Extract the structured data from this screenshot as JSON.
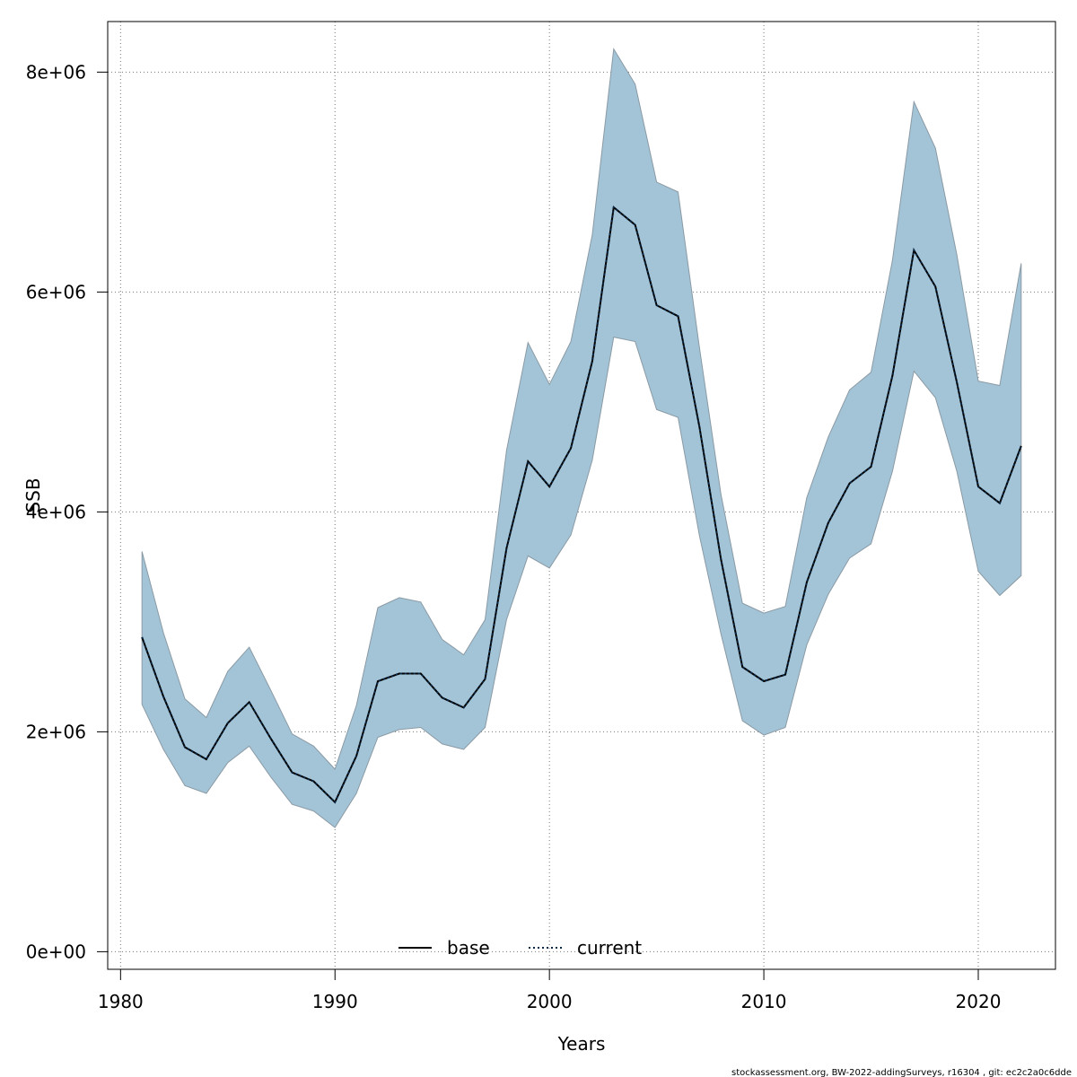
{
  "chart_data": {
    "type": "area",
    "xlabel": "Years",
    "ylabel": "SSB",
    "xlim": [
      1979.4,
      2023.6
    ],
    "ylim": [
      -160000,
      8460000
    ],
    "x_ticks": [
      1980,
      1990,
      2000,
      2010,
      2020
    ],
    "x_tick_labels": [
      "1980",
      "1990",
      "2000",
      "2010",
      "2020"
    ],
    "y_ticks": [
      0,
      2000000,
      4000000,
      6000000,
      8000000
    ],
    "y_tick_labels": [
      "0e+00",
      "2e+06",
      "4e+06",
      "6e+06",
      "8e+06"
    ],
    "grid": true,
    "legend_position": "bottom-center",
    "x": [
      1981,
      1982,
      1983,
      1984,
      1985,
      1986,
      1987,
      1988,
      1989,
      1990,
      1991,
      1992,
      1993,
      1994,
      1995,
      1996,
      1997,
      1998,
      1999,
      2000,
      2001,
      2002,
      2003,
      2004,
      2005,
      2006,
      2007,
      2008,
      2009,
      2010,
      2011,
      2012,
      2013,
      2014,
      2015,
      2016,
      2017,
      2018,
      2019,
      2020,
      2021,
      2022
    ],
    "series": [
      {
        "name": "base",
        "style": "solid",
        "color": "#000000",
        "values": [
          2860000,
          2320000,
          1860000,
          1750000,
          2080000,
          2270000,
          1940000,
          1630000,
          1550000,
          1360000,
          1780000,
          2460000,
          2530000,
          2530000,
          2310000,
          2220000,
          2480000,
          3670000,
          4460000,
          4230000,
          4580000,
          5370000,
          6770000,
          6610000,
          5880000,
          5780000,
          4770000,
          3570000,
          2590000,
          2460000,
          2520000,
          3360000,
          3900000,
          4260000,
          4410000,
          5240000,
          6380000,
          6050000,
          5180000,
          4230000,
          4080000,
          4600000
        ]
      },
      {
        "name": "current",
        "style": "dotted",
        "color": "#0a2a4a",
        "values": [
          2860000,
          2320000,
          1860000,
          1750000,
          2080000,
          2270000,
          1940000,
          1630000,
          1550000,
          1360000,
          1780000,
          2460000,
          2530000,
          2530000,
          2310000,
          2220000,
          2480000,
          3670000,
          4460000,
          4230000,
          4580000,
          5370000,
          6770000,
          6610000,
          5880000,
          5780000,
          4770000,
          3570000,
          2590000,
          2460000,
          2520000,
          3360000,
          3900000,
          4260000,
          4410000,
          5240000,
          6380000,
          6050000,
          5180000,
          4230000,
          4080000,
          4600000
        ]
      }
    ],
    "band": {
      "lower": [
        2250000,
        1840000,
        1510000,
        1440000,
        1720000,
        1870000,
        1590000,
        1340000,
        1280000,
        1130000,
        1440000,
        1950000,
        2020000,
        2040000,
        1890000,
        1840000,
        2040000,
        3020000,
        3600000,
        3490000,
        3790000,
        4470000,
        5590000,
        5550000,
        4930000,
        4860000,
        3780000,
        2890000,
        2100000,
        1970000,
        2040000,
        2790000,
        3250000,
        3580000,
        3710000,
        4370000,
        5280000,
        5040000,
        4370000,
        3460000,
        3240000,
        3420000
      ],
      "upper": [
        3640000,
        2900000,
        2300000,
        2130000,
        2550000,
        2770000,
        2380000,
        1980000,
        1870000,
        1660000,
        2240000,
        3130000,
        3220000,
        3180000,
        2840000,
        2700000,
        3020000,
        4560000,
        5540000,
        5160000,
        5550000,
        6520000,
        8210000,
        7890000,
        7000000,
        6910000,
        5490000,
        4160000,
        3170000,
        3080000,
        3140000,
        4130000,
        4680000,
        5110000,
        5270000,
        6290000,
        7730000,
        7310000,
        6340000,
        5190000,
        5150000,
        6260000
      ],
      "fill": "#a3c4d6",
      "edge": "#8a9aa5"
    }
  },
  "footer": "stockassessment.org, BW-2022-addingSurveys, r16304 , git: ec2c2a0c6dde"
}
